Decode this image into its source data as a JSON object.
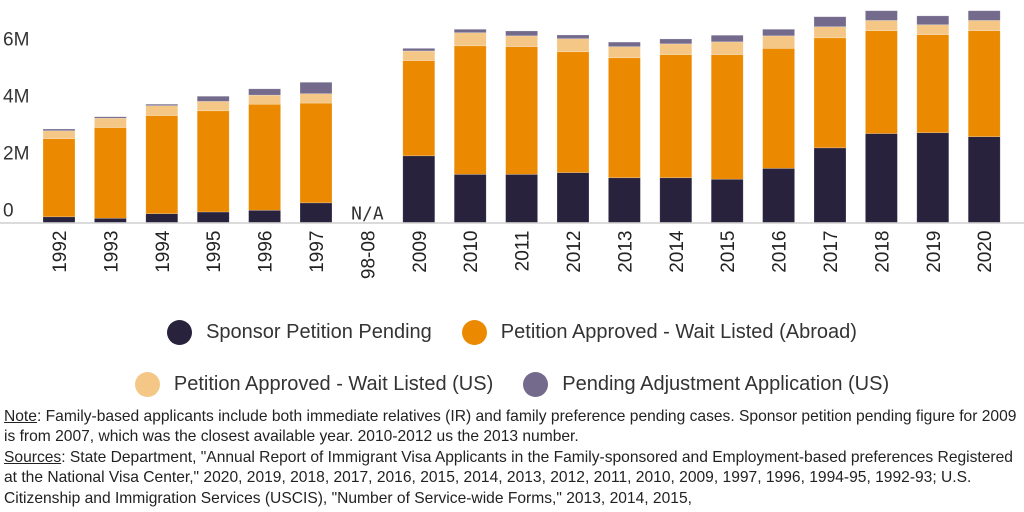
{
  "chart_data": {
    "type": "bar",
    "stacked": true,
    "categories": [
      "1992",
      "1993",
      "1994",
      "1995",
      "1996",
      "1997",
      "98-08",
      "2009",
      "2010",
      "2011",
      "2012",
      "2013",
      "2014",
      "2015",
      "2016",
      "2017",
      "2018",
      "2019",
      "2020"
    ],
    "missing_label": "N/A",
    "yticks": [
      {
        "value": 0,
        "label": "0"
      },
      {
        "value": 2,
        "label": "2M"
      },
      {
        "value": 4,
        "label": "4M"
      },
      {
        "value": 6,
        "label": "6M"
      }
    ],
    "ylim": [
      0,
      7.8
    ],
    "grid": false,
    "legend_position": "bottom",
    "series": [
      {
        "name": "Sponsor Petition Pending",
        "color": "#28223d",
        "values": [
          0.2,
          0.15,
          0.31,
          0.37,
          0.43,
          0.69,
          null,
          2.34,
          1.69,
          1.69,
          1.75,
          1.57,
          1.57,
          1.52,
          1.9,
          2.62,
          3.12,
          3.15,
          3.01
        ]
      },
      {
        "name": "Petition Approved - Wait Listed (Abroad)",
        "color": "#eb8a00",
        "values": [
          2.74,
          3.18,
          3.44,
          3.55,
          3.72,
          3.5,
          null,
          3.34,
          4.51,
          4.48,
          4.24,
          4.21,
          4.32,
          4.37,
          4.21,
          3.86,
          3.61,
          3.44,
          3.72
        ]
      },
      {
        "name": "Petition Approved - Wait Listed (US)",
        "color": "#f4c787",
        "values": [
          0.28,
          0.33,
          0.35,
          0.33,
          0.32,
          0.33,
          null,
          0.34,
          0.46,
          0.38,
          0.46,
          0.39,
          0.38,
          0.45,
          0.44,
          0.39,
          0.36,
          0.35,
          0.36
        ]
      },
      {
        "name": "Pending Adjustment Application (US)",
        "color": "#736a8c",
        "values": [
          0.06,
          0.05,
          0.05,
          0.18,
          0.22,
          0.4,
          null,
          0.09,
          0.12,
          0.17,
          0.13,
          0.16,
          0.17,
          0.23,
          0.23,
          0.35,
          0.34,
          0.31,
          0.34
        ]
      }
    ]
  },
  "notes": {
    "note_label": "Note",
    "note_text": ": Family-based applicants include both immediate relatives (IR) and family preference pending cases. Sponsor petition pending figure for 2009 is from 2007, which was the closest available year. 2010-2012 us the 2013 number.",
    "sources_label": "Sources",
    "sources_text": ": State Department, \"Annual Report of Immigrant Visa Applicants in the Family-sponsored and Employment-based preferences Registered at the National Visa Center,\" 2020, 2019, 2018, 2017, 2016, 2015, 2014, 2013, 2012, 2011, 2010, 2009, 1997, 1996, 1994-95, 1992-93; U.S. Citizenship and Immigration Services (USCIS), \"Number of Service-wide Forms,\" 2013, 2014, 2015,"
  }
}
